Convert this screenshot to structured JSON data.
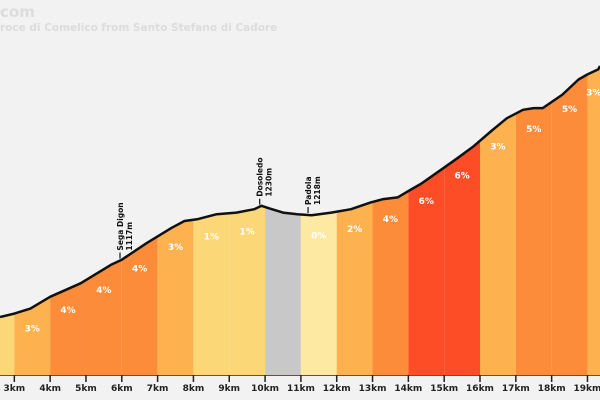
{
  "header": {
    "title": "com",
    "subtitle": "roce di Comelico from Santo Stefano di Cadore"
  },
  "chart_data": {
    "type": "area",
    "title": "com",
    "subtitle": "roce di Comelico from Santo Stefano di Cadore",
    "xlabel": "",
    "ylabel": "",
    "xlim": [
      2.6,
      19.35
    ],
    "x_ticks": [
      "3km",
      "4km",
      "5km",
      "6km",
      "7km",
      "8km",
      "9km",
      "10km",
      "11km",
      "12km",
      "13km",
      "14km",
      "15km",
      "16km",
      "17km",
      "18km",
      "19km"
    ],
    "x_tick_values": [
      3,
      4,
      5,
      6,
      7,
      8,
      9,
      10,
      11,
      12,
      13,
      14,
      15,
      16,
      17,
      18,
      19
    ],
    "segments": [
      {
        "from": 2.6,
        "to": 3,
        "gradient": null,
        "color": "#fcd778"
      },
      {
        "from": 3,
        "to": 4,
        "gradient": "3%",
        "color": "#fdb24f"
      },
      {
        "from": 4,
        "to": 5,
        "gradient": "4%",
        "color": "#fc8c3a"
      },
      {
        "from": 5,
        "to": 6,
        "gradient": "4%",
        "color": "#fc8c3a"
      },
      {
        "from": 6,
        "to": 7,
        "gradient": "4%",
        "color": "#fc8c3a"
      },
      {
        "from": 7,
        "to": 8,
        "gradient": "3%",
        "color": "#fdb24f"
      },
      {
        "from": 8,
        "to": 9,
        "gradient": "1%",
        "color": "#fcd778"
      },
      {
        "from": 9,
        "to": 10,
        "gradient": "1%",
        "color": "#fcd778"
      },
      {
        "from": 10,
        "to": 11,
        "gradient": null,
        "color": "#c8c8c8"
      },
      {
        "from": 11,
        "to": 12,
        "gradient": "0%",
        "color": "#fde9a2"
      },
      {
        "from": 12,
        "to": 13,
        "gradient": "2%",
        "color": "#fdb24f"
      },
      {
        "from": 13,
        "to": 14,
        "gradient": "4%",
        "color": "#fc8c3a"
      },
      {
        "from": 14,
        "to": 15,
        "gradient": "6%",
        "color": "#fd4d27"
      },
      {
        "from": 15,
        "to": 16,
        "gradient": "6%",
        "color": "#fd4d27"
      },
      {
        "from": 16,
        "to": 17,
        "gradient": "3%",
        "color": "#fdb24f"
      },
      {
        "from": 17,
        "to": 18,
        "gradient": "5%",
        "color": "#fc8c3a"
      },
      {
        "from": 18,
        "to": 19,
        "gradient": "5%",
        "color": "#fc8c3a"
      },
      {
        "from": 19,
        "to": 19.35,
        "gradient": "3%",
        "color": "#fdb24f"
      }
    ],
    "profile_relative_height": [
      [
        2.6,
        0.0
      ],
      [
        3.0,
        0.01
      ],
      [
        3.45,
        0.025
      ],
      [
        4.0,
        0.06
      ],
      [
        4.85,
        0.1
      ],
      [
        5.7,
        0.155
      ],
      [
        6.0,
        0.17
      ],
      [
        6.7,
        0.22
      ],
      [
        7.4,
        0.265
      ],
      [
        7.75,
        0.285
      ],
      [
        8.1,
        0.29
      ],
      [
        8.65,
        0.305
      ],
      [
        9.2,
        0.31
      ],
      [
        9.7,
        0.32
      ],
      [
        9.9,
        0.33
      ],
      [
        10.1,
        0.323
      ],
      [
        10.5,
        0.31
      ],
      [
        10.9,
        0.305
      ],
      [
        11.3,
        0.302
      ],
      [
        11.85,
        0.31
      ],
      [
        12.4,
        0.32
      ],
      [
        12.95,
        0.34
      ],
      [
        13.3,
        0.35
      ],
      [
        13.7,
        0.355
      ],
      [
        14.1,
        0.38
      ],
      [
        14.35,
        0.395
      ],
      [
        14.95,
        0.44
      ],
      [
        15.35,
        0.47
      ],
      [
        15.8,
        0.505
      ],
      [
        16.35,
        0.555
      ],
      [
        16.75,
        0.59
      ],
      [
        17.2,
        0.615
      ],
      [
        17.5,
        0.62
      ],
      [
        17.75,
        0.62
      ],
      [
        18.3,
        0.66
      ],
      [
        18.75,
        0.705
      ],
      [
        19.0,
        0.72
      ],
      [
        19.3,
        0.735
      ],
      [
        19.35,
        0.745
      ]
    ],
    "annotations": [
      {
        "label": "Sega Digon",
        "elevation": "1117m",
        "km": 5.95
      },
      {
        "label": "Dosoledo",
        "elevation": "1230m",
        "km": 9.85
      },
      {
        "label": "Padola",
        "elevation": "1218m",
        "km": 11.2
      }
    ],
    "grid": false,
    "legend": "none"
  }
}
